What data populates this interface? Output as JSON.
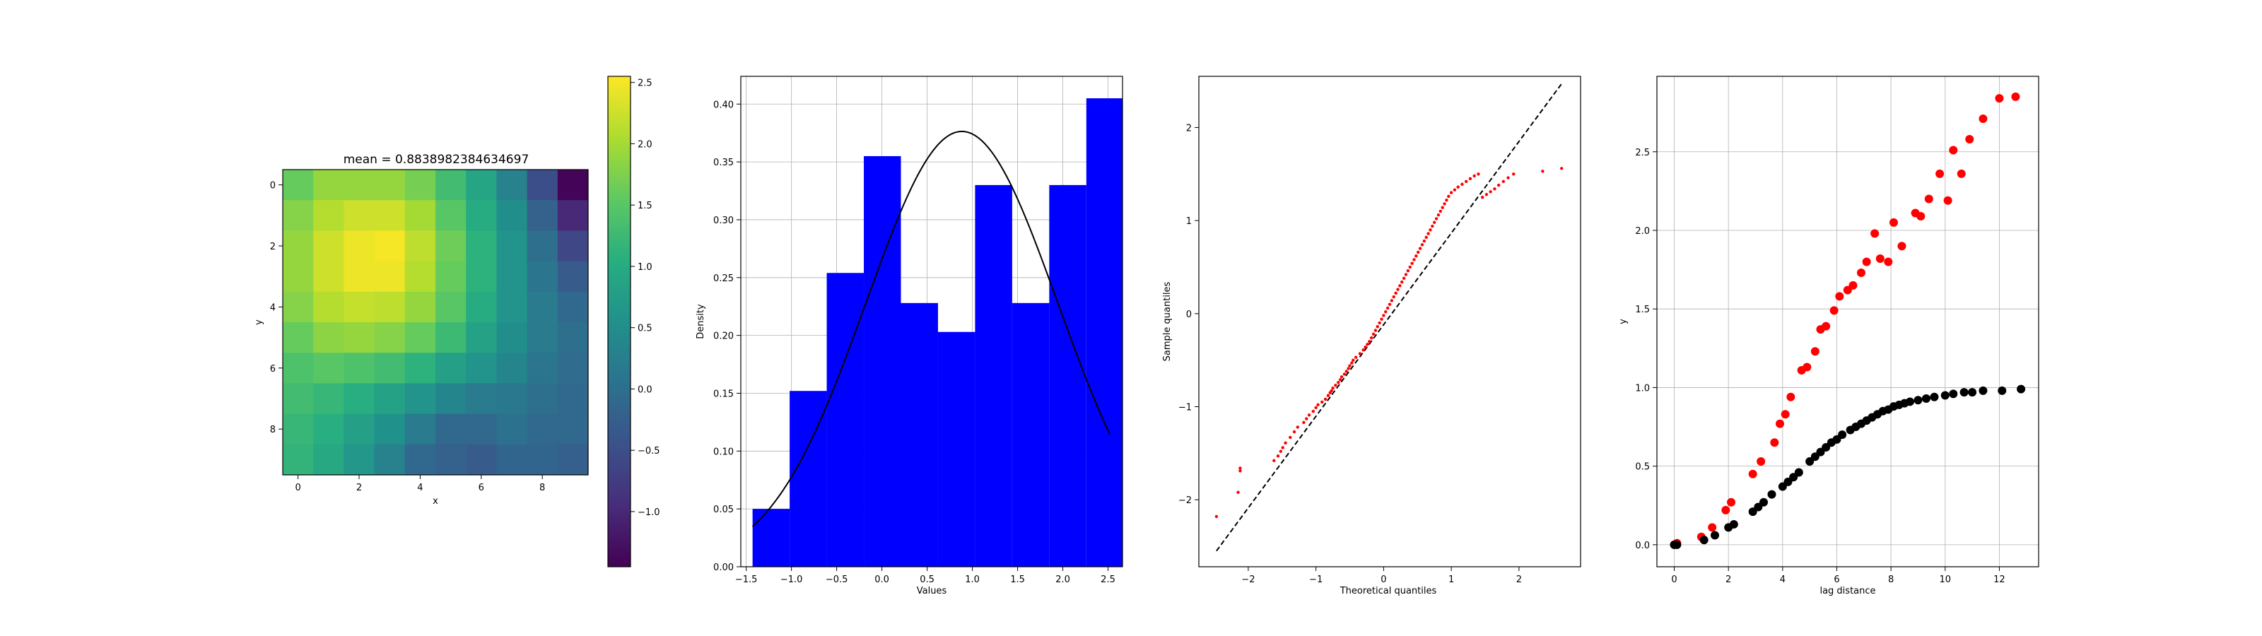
{
  "chart_data": [
    {
      "type": "heatmap",
      "title": "mean = 0.8838982384634697",
      "xlabel": "x",
      "ylabel": "y",
      "xlim": [
        -0.5,
        9.5
      ],
      "ylim": [
        9.5,
        -0.5
      ],
      "x_ticks": [
        0,
        2,
        4,
        6,
        8
      ],
      "y_ticks": [
        0,
        2,
        4,
        6,
        8
      ],
      "colormap": "viridis",
      "vmin": -1.45,
      "vmax": 2.55,
      "colorbar_ticks": [
        2.5,
        2.0,
        1.5,
        1.0,
        0.5,
        0.0,
        -0.5,
        -1.0
      ],
      "colorbar_tick_labels": [
        "2.5",
        "2.0",
        "1.5",
        "1.0",
        "0.5",
        "0.0",
        "−0.5",
        "−1.0"
      ],
      "values": [
        [
          1.6,
          1.9,
          1.9,
          1.9,
          1.7,
          1.3,
          0.9,
          0.3,
          -0.5,
          -1.4
        ],
        [
          1.8,
          2.1,
          2.25,
          2.25,
          2.0,
          1.5,
          1.0,
          0.5,
          -0.2,
          -1.0
        ],
        [
          1.9,
          2.25,
          2.45,
          2.5,
          2.15,
          1.65,
          1.1,
          0.6,
          0.0,
          -0.6
        ],
        [
          1.9,
          2.25,
          2.45,
          2.45,
          2.1,
          1.6,
          1.1,
          0.6,
          0.1,
          -0.3
        ],
        [
          1.8,
          2.1,
          2.2,
          2.15,
          1.9,
          1.5,
          1.0,
          0.6,
          0.2,
          -0.1
        ],
        [
          1.6,
          1.85,
          1.9,
          1.8,
          1.6,
          1.25,
          0.85,
          0.5,
          0.2,
          0.0
        ],
        [
          1.4,
          1.5,
          1.4,
          1.3,
          1.1,
          0.8,
          0.6,
          0.35,
          0.1,
          -0.05
        ],
        [
          1.3,
          1.2,
          1.05,
          0.85,
          0.6,
          0.35,
          0.2,
          0.15,
          0.0,
          -0.1
        ],
        [
          1.2,
          1.05,
          0.8,
          0.55,
          0.2,
          -0.1,
          -0.1,
          0.05,
          -0.1,
          -0.1
        ],
        [
          1.15,
          0.95,
          0.65,
          0.3,
          -0.1,
          -0.2,
          -0.3,
          -0.15,
          -0.15,
          -0.25
        ]
      ]
    },
    {
      "type": "bar",
      "subtype": "histogram",
      "xlabel": "Values",
      "ylabel": "Density",
      "xlim": [
        -1.56,
        2.66
      ],
      "ylim": [
        0,
        0.424
      ],
      "grid": true,
      "bar_color": "#0000ff",
      "bin_edges": [
        -1.43,
        -1.02,
        -0.61,
        -0.2,
        0.21,
        0.62,
        1.03,
        1.44,
        1.85,
        2.26,
        2.66
      ],
      "values": [
        0.05,
        0.152,
        0.254,
        0.355,
        0.228,
        0.203,
        0.33,
        0.228,
        0.33,
        0.405
      ],
      "x_ticks": [
        -1.5,
        -1.0,
        -0.5,
        0.0,
        0.5,
        1.0,
        1.5,
        2.0,
        2.5
      ],
      "x_tick_labels": [
        "−1.5",
        "−1.0",
        "−0.5",
        "0.0",
        "0.5",
        "1.0",
        "1.5",
        "2.0",
        "2.5"
      ],
      "y_ticks": [
        0.0,
        0.05,
        0.1,
        0.15,
        0.2,
        0.25,
        0.3,
        0.35,
        0.4
      ],
      "y_tick_labels": [
        "0.00",
        "0.05",
        "0.10",
        "0.15",
        "0.20",
        "0.25",
        "0.30",
        "0.35",
        "0.40"
      ],
      "density_curve": {
        "color": "#000000",
        "distribution": "normal",
        "mean": 0.884,
        "sd": 1.06,
        "x_range": [
          -1.43,
          2.52
        ]
      }
    },
    {
      "type": "scatter",
      "subtype": "qq-plot",
      "xlabel": "Theoretical quantiles",
      "ylabel": "Sample quantiles",
      "xlim": [
        -2.73,
        2.91
      ],
      "ylim": [
        -2.72,
        2.55
      ],
      "grid": false,
      "x_ticks": [
        -2,
        -1,
        0,
        1,
        2
      ],
      "x_tick_labels": [
        "−2",
        "−1",
        "0",
        "1",
        "2"
      ],
      "y_ticks": [
        -2,
        -1,
        0,
        1,
        2
      ],
      "y_tick_labels": [
        "−2",
        "−1",
        "0",
        "1",
        "2"
      ],
      "point_color": "#ff0000",
      "reference_line": {
        "color": "#000000",
        "style": "dashed",
        "x": [
          -2.47,
          2.63
        ],
        "y": [
          -2.55,
          2.47
        ]
      },
      "points": {
        "x": [
          -2.47,
          -2.15,
          -2.12,
          -2.12,
          -1.62,
          -1.56,
          -1.52,
          -1.49,
          -1.45,
          -1.38,
          -1.32,
          -1.27,
          -1.18,
          -1.14,
          -1.1,
          -1.04,
          -1.0,
          -0.97,
          -0.91,
          -0.86,
          -0.82,
          -0.79,
          -0.77,
          -0.75,
          -0.71,
          -0.67,
          -0.64,
          -0.62,
          -0.58,
          -0.55,
          -0.52,
          -0.5,
          -0.47,
          -0.45,
          -0.41,
          -0.35,
          -0.3,
          -0.27,
          -0.24,
          -0.21,
          -0.18,
          -0.15,
          -0.12,
          -0.09,
          -0.06,
          -0.03,
          0.0,
          0.03,
          0.06,
          0.09,
          0.12,
          0.15,
          0.18,
          0.21,
          0.24,
          0.27,
          0.3,
          0.33,
          0.36,
          0.39,
          0.42,
          0.45,
          0.48,
          0.51,
          0.54,
          0.57,
          0.6,
          0.63,
          0.66,
          0.69,
          0.72,
          0.75,
          0.78,
          0.81,
          0.84,
          0.87,
          0.9,
          0.93,
          0.96,
          1.0,
          1.05,
          1.1,
          1.16,
          1.22,
          1.28,
          1.34,
          1.4,
          1.46,
          1.52,
          1.58,
          1.64,
          1.7,
          1.77,
          1.84,
          1.92,
          2.35,
          2.63
        ],
        "y": [
          -2.18,
          -1.92,
          -1.69,
          -1.66,
          -1.58,
          -1.53,
          -1.48,
          -1.44,
          -1.39,
          -1.33,
          -1.27,
          -1.22,
          -1.17,
          -1.13,
          -1.09,
          -1.05,
          -1.01,
          -0.98,
          -0.95,
          -0.92,
          -0.88,
          -0.85,
          -0.83,
          -0.8,
          -0.77,
          -0.74,
          -0.71,
          -0.68,
          -0.65,
          -0.62,
          -0.59,
          -0.56,
          -0.53,
          -0.5,
          -0.47,
          -0.43,
          -0.39,
          -0.36,
          -0.33,
          -0.3,
          -0.26,
          -0.22,
          -0.18,
          -0.14,
          -0.1,
          -0.06,
          -0.02,
          0.02,
          0.06,
          0.1,
          0.14,
          0.18,
          0.22,
          0.26,
          0.3,
          0.34,
          0.38,
          0.42,
          0.46,
          0.5,
          0.54,
          0.58,
          0.62,
          0.66,
          0.7,
          0.74,
          0.78,
          0.82,
          0.86,
          0.9,
          0.94,
          0.98,
          1.02,
          1.06,
          1.1,
          1.14,
          1.18,
          1.22,
          1.26,
          1.3,
          1.33,
          1.36,
          1.39,
          1.42,
          1.45,
          1.48,
          1.5,
          1.25,
          1.28,
          1.31,
          1.34,
          1.38,
          1.42,
          1.46,
          1.5,
          1.53,
          1.56
        ]
      }
    },
    {
      "type": "scatter",
      "xlabel": "lag distance",
      "ylabel": "y",
      "xlim": [
        -0.64,
        13.45
      ],
      "ylim": [
        -0.14,
        2.98
      ],
      "grid": true,
      "x_ticks": [
        0,
        2,
        4,
        6,
        8,
        10,
        12
      ],
      "x_tick_labels": [
        "0",
        "2",
        "4",
        "6",
        "8",
        "10",
        "12"
      ],
      "y_ticks": [
        0.0,
        0.5,
        1.0,
        1.5,
        2.0,
        2.5
      ],
      "y_tick_labels": [
        "0.0",
        "0.5",
        "1.0",
        "1.5",
        "2.0",
        "2.5"
      ],
      "series": [
        {
          "color": "#ff0000",
          "x": [
            0.0,
            0.1,
            1.0,
            1.4,
            1.9,
            2.1,
            2.9,
            3.2,
            3.7,
            3.9,
            4.1,
            4.3,
            4.7,
            4.9,
            5.2,
            5.4,
            5.6,
            5.9,
            6.1,
            6.4,
            6.6,
            6.9,
            7.1,
            7.4,
            7.6,
            7.9,
            8.1,
            8.4,
            8.9,
            9.1,
            9.4,
            9.8,
            10.1,
            10.3,
            10.6,
            10.9,
            11.4,
            12.0,
            12.6
          ],
          "y": [
            0.0,
            0.01,
            0.05,
            0.11,
            0.22,
            0.27,
            0.45,
            0.53,
            0.65,
            0.77,
            0.83,
            0.94,
            1.11,
            1.13,
            1.23,
            1.37,
            1.39,
            1.49,
            1.58,
            1.62,
            1.65,
            1.73,
            1.8,
            1.98,
            1.82,
            1.8,
            2.05,
            1.9,
            2.11,
            2.09,
            2.2,
            2.36,
            2.19,
            2.51,
            2.36,
            2.58,
            2.71,
            2.84,
            2.85
          ]
        },
        {
          "color": "#000000",
          "x": [
            0.0,
            0.1,
            1.1,
            1.5,
            2.0,
            2.2,
            2.9,
            3.1,
            3.3,
            3.6,
            4.0,
            4.2,
            4.4,
            4.6,
            5.0,
            5.2,
            5.4,
            5.6,
            5.8,
            6.0,
            6.2,
            6.5,
            6.7,
            6.9,
            7.1,
            7.3,
            7.5,
            7.7,
            7.9,
            8.1,
            8.3,
            8.5,
            8.7,
            9.0,
            9.3,
            9.6,
            10.0,
            10.3,
            10.7,
            11.0,
            11.4,
            12.1,
            12.8
          ],
          "y": [
            0.0,
            0.0,
            0.03,
            0.06,
            0.11,
            0.13,
            0.21,
            0.24,
            0.27,
            0.32,
            0.37,
            0.4,
            0.43,
            0.46,
            0.53,
            0.56,
            0.59,
            0.62,
            0.65,
            0.67,
            0.7,
            0.73,
            0.75,
            0.77,
            0.79,
            0.81,
            0.83,
            0.85,
            0.86,
            0.88,
            0.89,
            0.9,
            0.91,
            0.92,
            0.93,
            0.94,
            0.95,
            0.96,
            0.97,
            0.97,
            0.98,
            0.98,
            0.99
          ]
        }
      ]
    }
  ]
}
